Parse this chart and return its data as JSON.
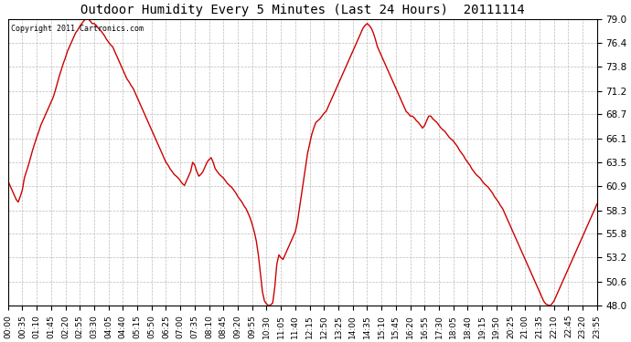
{
  "title": "Outdoor Humidity Every 5 Minutes (Last 24 Hours)  20111114",
  "copyright": "Copyright 2011 Cartronics.com",
  "line_color": "#cc0000",
  "bg_color": "#ffffff",
  "grid_color": "#aaaaaa",
  "ylim": [
    48.0,
    79.0
  ],
  "yticks": [
    48.0,
    50.6,
    53.2,
    55.8,
    58.3,
    60.9,
    63.5,
    66.1,
    68.7,
    71.2,
    73.8,
    76.4,
    79.0
  ],
  "humidity_values": [
    61.5,
    61.0,
    60.5,
    60.0,
    59.5,
    59.2,
    59.8,
    60.5,
    61.8,
    62.5,
    63.2,
    64.0,
    64.8,
    65.5,
    66.2,
    66.8,
    67.5,
    68.0,
    68.5,
    69.0,
    69.5,
    70.0,
    70.5,
    71.2,
    72.0,
    72.8,
    73.5,
    74.2,
    74.8,
    75.5,
    76.0,
    76.5,
    77.0,
    77.5,
    77.8,
    78.2,
    78.5,
    78.8,
    79.0,
    79.0,
    78.8,
    78.5,
    78.5,
    78.3,
    78.0,
    77.8,
    77.5,
    77.2,
    76.8,
    76.5,
    76.2,
    76.0,
    75.5,
    75.0,
    74.5,
    74.0,
    73.5,
    73.0,
    72.5,
    72.2,
    71.8,
    71.5,
    71.0,
    70.5,
    70.0,
    69.5,
    69.0,
    68.5,
    68.0,
    67.5,
    67.0,
    66.5,
    66.0,
    65.5,
    65.0,
    64.5,
    64.0,
    63.5,
    63.2,
    62.8,
    62.5,
    62.2,
    62.0,
    61.8,
    61.5,
    61.2,
    61.0,
    61.5,
    62.0,
    62.5,
    63.5,
    63.2,
    62.5,
    62.0,
    62.2,
    62.5,
    63.0,
    63.5,
    63.8,
    64.0,
    63.5,
    62.8,
    62.5,
    62.2,
    62.0,
    61.8,
    61.5,
    61.2,
    61.0,
    60.8,
    60.5,
    60.2,
    59.8,
    59.5,
    59.2,
    58.8,
    58.5,
    58.0,
    57.5,
    56.8,
    56.0,
    55.0,
    53.5,
    51.5,
    49.5,
    48.5,
    48.2,
    48.0,
    48.1,
    48.3,
    50.0,
    52.5,
    53.5,
    53.2,
    53.0,
    53.5,
    54.0,
    54.5,
    55.0,
    55.5,
    56.0,
    57.0,
    58.5,
    60.0,
    61.5,
    63.0,
    64.5,
    65.5,
    66.5,
    67.2,
    67.8,
    68.0,
    68.2,
    68.5,
    68.8,
    69.0,
    69.5,
    70.0,
    70.5,
    71.0,
    71.5,
    72.0,
    72.5,
    73.0,
    73.5,
    74.0,
    74.5,
    75.0,
    75.5,
    76.0,
    76.5,
    77.0,
    77.5,
    78.0,
    78.3,
    78.5,
    78.3,
    78.0,
    77.5,
    76.8,
    76.0,
    75.5,
    75.0,
    74.5,
    74.0,
    73.5,
    73.0,
    72.5,
    72.0,
    71.5,
    71.0,
    70.5,
    70.0,
    69.5,
    69.0,
    68.8,
    68.5,
    68.5,
    68.3,
    68.0,
    67.8,
    67.5,
    67.2,
    67.5,
    68.0,
    68.5,
    68.5,
    68.2,
    68.0,
    67.8,
    67.5,
    67.2,
    67.0,
    66.8,
    66.5,
    66.2,
    66.0,
    65.8,
    65.5,
    65.2,
    64.8,
    64.5,
    64.2,
    63.8,
    63.5,
    63.2,
    62.8,
    62.5,
    62.2,
    62.0,
    61.8,
    61.5,
    61.2,
    61.0,
    60.8,
    60.5,
    60.2,
    59.8,
    59.5,
    59.2,
    58.8,
    58.5,
    58.0,
    57.5,
    57.0,
    56.5,
    56.0,
    55.5,
    55.0,
    54.5,
    54.0,
    53.5,
    53.0,
    52.5,
    52.0,
    51.5,
    51.0,
    50.5,
    50.0,
    49.5,
    49.0,
    48.5,
    48.2,
    48.1,
    48.0,
    48.2,
    48.5,
    49.0,
    49.5,
    50.0,
    50.5,
    51.0,
    51.5,
    52.0,
    52.5,
    53.0,
    53.5,
    54.0,
    54.5,
    55.0,
    55.5,
    56.0,
    56.5,
    57.0,
    57.5,
    58.0,
    58.5,
    59.0
  ],
  "x_tick_labels": [
    "00:00",
    "00:35",
    "01:10",
    "01:45",
    "02:20",
    "02:55",
    "03:30",
    "04:05",
    "04:40",
    "05:15",
    "05:50",
    "06:25",
    "07:00",
    "07:35",
    "08:10",
    "08:45",
    "09:20",
    "09:55",
    "10:30",
    "11:05",
    "11:40",
    "12:15",
    "12:50",
    "13:25",
    "14:00",
    "14:35",
    "15:10",
    "15:45",
    "16:20",
    "16:55",
    "17:30",
    "18:05",
    "18:40",
    "19:15",
    "19:50",
    "20:25",
    "21:00",
    "21:35",
    "22:10",
    "22:45",
    "23:20",
    "23:55"
  ]
}
